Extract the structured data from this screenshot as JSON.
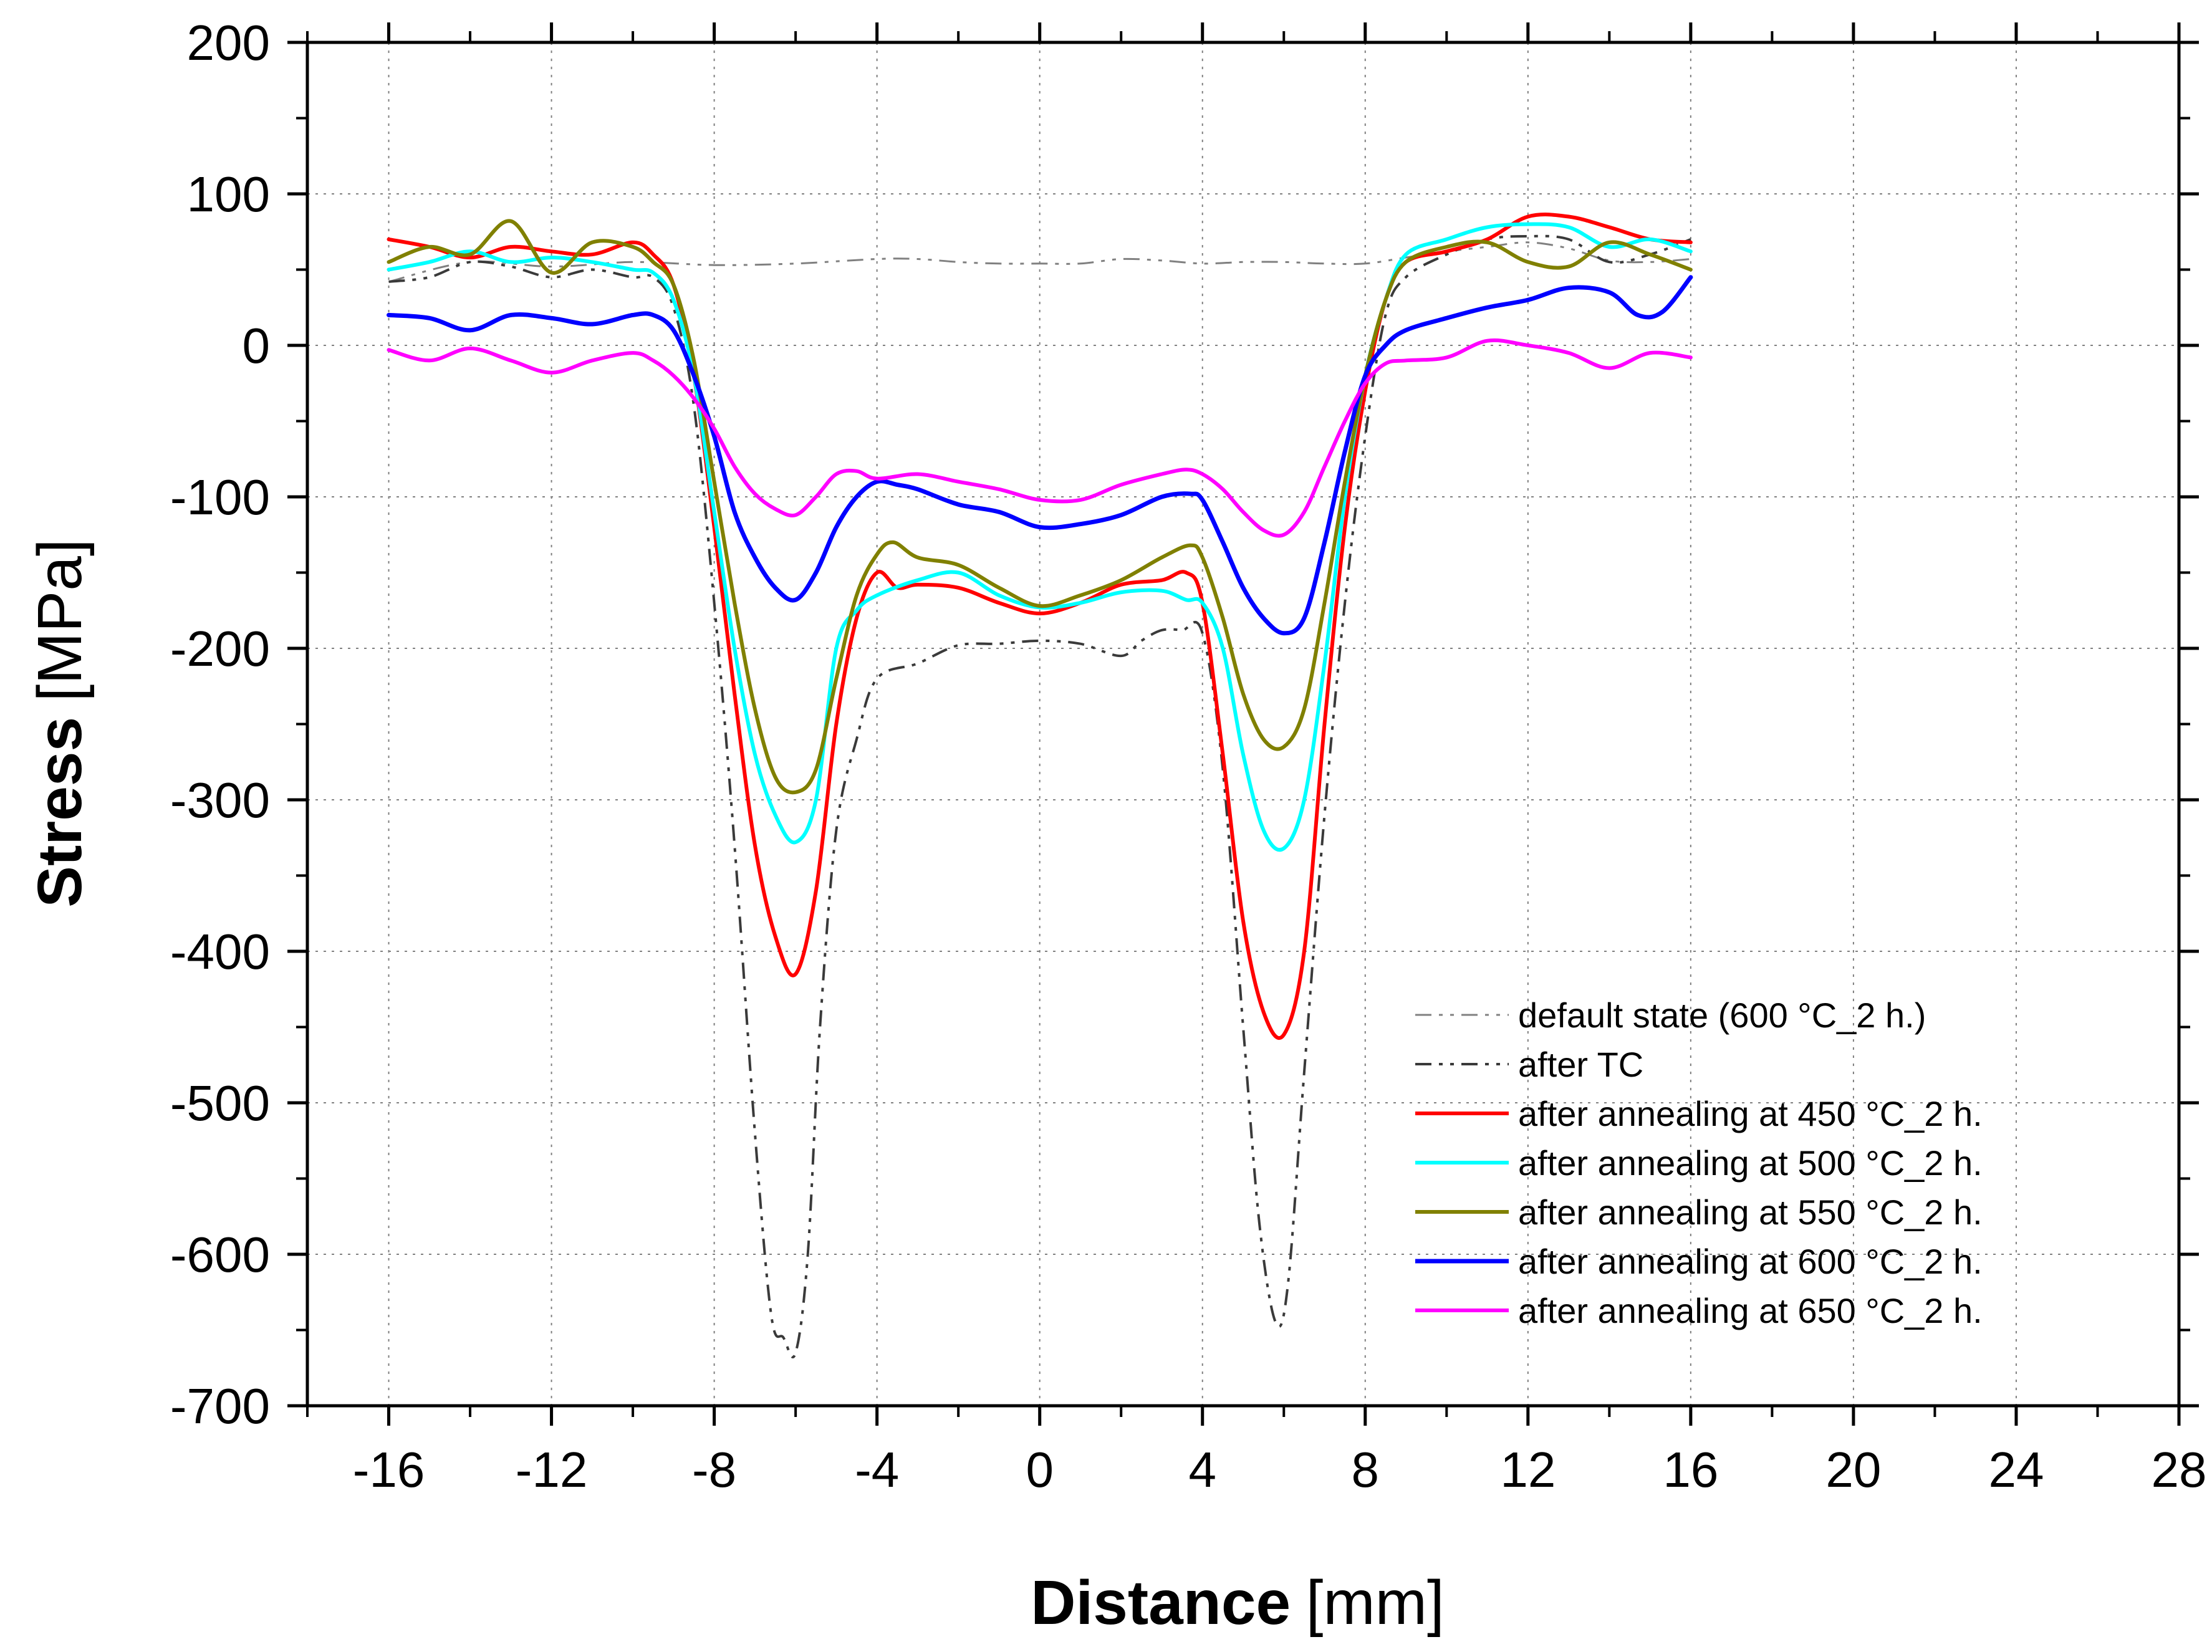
{
  "chart_data": {
    "type": "line",
    "title": "",
    "xlabel_bold": "Distance",
    "xlabel_unit": "[mm]",
    "ylabel_bold": "Stress",
    "ylabel_unit": "[MPa]",
    "xlim": [
      -18,
      28
    ],
    "ylim": [
      -700,
      200
    ],
    "xticks": [
      -16,
      -12,
      -8,
      -4,
      0,
      4,
      8,
      12,
      16,
      20,
      24,
      28
    ],
    "yticks": [
      200,
      100,
      0,
      -100,
      -200,
      -300,
      -400,
      -500,
      -600,
      -700
    ],
    "xtick_labels": [
      "-16",
      "-12",
      "-8",
      "-4",
      "0",
      "4",
      "8",
      "12",
      "16",
      "20",
      "24",
      "28"
    ],
    "ytick_labels": [
      "200",
      "100",
      "0",
      "-100",
      "-200",
      "-300",
      "-400",
      "-500",
      "-600",
      "-700"
    ],
    "grid": true,
    "legend_position": "bottom-right",
    "series": [
      {
        "name": "default state (600 °C_2 h.)",
        "color": "#808080",
        "dash": "dash-dot-dot",
        "width": 3,
        "x": [
          -16,
          -14,
          -12,
          -10,
          -8,
          -6,
          -4,
          -3,
          -2,
          -1,
          0,
          1,
          2,
          3,
          4,
          5,
          6,
          7,
          8,
          9,
          10,
          11,
          12,
          13,
          14,
          15,
          16
        ],
        "y": [
          42,
          55,
          52,
          55,
          53,
          54,
          57,
          57,
          55,
          54,
          54,
          54,
          57,
          56,
          54,
          55,
          55,
          54,
          54,
          58,
          62,
          65,
          68,
          64,
          56,
          55,
          57
        ]
      },
      {
        "name": "after TC",
        "color": "#3a3a3a",
        "dash": "dash-dot-dot",
        "width": 4,
        "x": [
          -16,
          -15,
          -14,
          -13,
          -12,
          -11,
          -10,
          -9.5,
          -9,
          -8.5,
          -8,
          -7.5,
          -7,
          -6.6,
          -6.3,
          -6,
          -5.7,
          -5.4,
          -5,
          -4.5,
          -4,
          -3,
          -2,
          -1,
          0,
          1,
          2,
          2.5,
          3,
          3.5,
          4,
          4.5,
          5,
          5.4,
          5.8,
          6.1,
          6.5,
          7,
          7.5,
          8,
          8.5,
          9,
          10,
          11,
          12,
          13,
          14,
          15,
          16
        ],
        "y": [
          42,
          45,
          55,
          52,
          45,
          50,
          45,
          45,
          25,
          -40,
          -170,
          -330,
          -520,
          -640,
          -655,
          -665,
          -600,
          -450,
          -320,
          -260,
          -220,
          -210,
          -198,
          -197,
          -195,
          -197,
          -205,
          -195,
          -188,
          -188,
          -190,
          -280,
          -450,
          -580,
          -645,
          -620,
          -480,
          -310,
          -170,
          -60,
          20,
          45,
          60,
          70,
          72,
          70,
          55,
          60,
          70
        ]
      },
      {
        "name": "after annealing at 450 °C_2 h.",
        "color": "#ff0000",
        "dash": "solid",
        "width": 6,
        "x": [
          -16,
          -15,
          -14,
          -13,
          -12,
          -11,
          -10,
          -9.5,
          -9,
          -8.5,
          -8,
          -7.5,
          -7,
          -6.5,
          -6,
          -5.5,
          -5,
          -4.5,
          -4,
          -3.5,
          -3,
          -2,
          -1,
          0,
          1,
          2,
          3,
          3.6,
          4,
          4.5,
          5,
          5.5,
          6,
          6.5,
          7,
          7.5,
          8,
          8.5,
          9,
          10,
          11,
          12,
          13,
          14,
          15,
          16
        ],
        "y": [
          70,
          65,
          58,
          65,
          62,
          60,
          68,
          60,
          40,
          -20,
          -120,
          -230,
          -330,
          -390,
          -415,
          -360,
          -250,
          -180,
          -150,
          -160,
          -158,
          -160,
          -170,
          -177,
          -170,
          -158,
          -155,
          -150,
          -170,
          -270,
          -380,
          -440,
          -455,
          -400,
          -250,
          -120,
          -30,
          30,
          55,
          62,
          70,
          85,
          85,
          78,
          70,
          68
        ]
      },
      {
        "name": "after annealing at 500 °C_2 h.",
        "color": "#00ffff",
        "dash": "solid",
        "width": 6,
        "x": [
          -16,
          -15,
          -14,
          -13,
          -12,
          -11,
          -10,
          -9.5,
          -9,
          -8.5,
          -8,
          -7.5,
          -7,
          -6.5,
          -6,
          -5.5,
          -5,
          -4.5,
          -4,
          -3,
          -2,
          -1,
          0,
          1,
          2,
          3,
          3.6,
          4,
          4.5,
          5,
          5.5,
          6,
          6.5,
          7,
          7.5,
          8,
          8.5,
          9,
          10,
          11,
          12,
          13,
          14,
          15,
          16
        ],
        "y": [
          50,
          55,
          62,
          55,
          58,
          55,
          50,
          48,
          30,
          -20,
          -110,
          -200,
          -270,
          -310,
          -328,
          -300,
          -200,
          -175,
          -165,
          -155,
          -150,
          -165,
          -173,
          -170,
          -163,
          -162,
          -168,
          -170,
          -200,
          -270,
          -320,
          -332,
          -300,
          -210,
          -100,
          -20,
          30,
          60,
          70,
          78,
          80,
          78,
          65,
          70,
          62
        ]
      },
      {
        "name": "after annealing at 550 °C_2 h.",
        "color": "#808000",
        "dash": "solid",
        "width": 6,
        "x": [
          -16,
          -15,
          -14,
          -13,
          -12,
          -11,
          -10,
          -9.5,
          -9,
          -8.5,
          -8,
          -7.5,
          -7,
          -6.5,
          -6,
          -5.5,
          -5,
          -4.5,
          -4,
          -3.6,
          -3,
          -2,
          -1,
          0,
          1,
          2,
          3,
          3.7,
          4,
          4.5,
          5,
          5.5,
          6,
          6.5,
          7,
          7.5,
          8,
          8.5,
          9,
          10,
          11,
          12,
          13,
          14,
          15,
          16
        ],
        "y": [
          55,
          65,
          60,
          82,
          48,
          68,
          65,
          55,
          40,
          -10,
          -90,
          -170,
          -240,
          -285,
          -295,
          -280,
          -220,
          -165,
          -138,
          -130,
          -140,
          -145,
          -160,
          -172,
          -165,
          -155,
          -140,
          -132,
          -140,
          -180,
          -230,
          -260,
          -265,
          -240,
          -170,
          -90,
          -20,
          30,
          55,
          65,
          68,
          55,
          52,
          68,
          60,
          50
        ]
      },
      {
        "name": "after annealing at 600 °C_2 h.",
        "color": "#0000ff",
        "dash": "solid",
        "width": 7,
        "x": [
          -16,
          -15,
          -14,
          -13,
          -12,
          -11,
          -10,
          -9.5,
          -9,
          -8.5,
          -8,
          -7.5,
          -7,
          -6.5,
          -6,
          -5.5,
          -5,
          -4.5,
          -4,
          -3.5,
          -3,
          -2,
          -1,
          0,
          1,
          2,
          3,
          3.7,
          4,
          4.5,
          5,
          5.5,
          6,
          6.5,
          7,
          7.5,
          8,
          8.5,
          9,
          10,
          11,
          12,
          13,
          14,
          14.7,
          15.3,
          16
        ],
        "y": [
          20,
          18,
          10,
          20,
          18,
          14,
          20,
          20,
          10,
          -20,
          -60,
          -110,
          -140,
          -160,
          -168,
          -150,
          -120,
          -100,
          -90,
          -92,
          -95,
          -105,
          -110,
          -120,
          -118,
          -112,
          -100,
          -98,
          -102,
          -130,
          -160,
          -180,
          -190,
          -180,
          -130,
          -70,
          -20,
          0,
          10,
          18,
          25,
          30,
          38,
          35,
          20,
          22,
          45
        ]
      },
      {
        "name": "after annealing at 650 °C_2 h.",
        "color": "#ff00ff",
        "dash": "solid",
        "width": 6,
        "x": [
          -16,
          -15,
          -14,
          -13,
          -12,
          -11,
          -10,
          -9.5,
          -9,
          -8.5,
          -8,
          -7.5,
          -7,
          -6.5,
          -6,
          -5.5,
          -5,
          -4.5,
          -4,
          -3,
          -2,
          -1,
          0,
          1,
          2,
          3,
          3.6,
          4,
          4.5,
          5,
          5.5,
          6,
          6.5,
          7,
          7.5,
          8,
          8.5,
          9,
          10,
          11,
          12,
          13,
          14,
          15,
          16
        ],
        "y": [
          -3,
          -10,
          -2,
          -10,
          -18,
          -10,
          -5,
          -10,
          -20,
          -35,
          -55,
          -80,
          -98,
          -108,
          -112,
          -100,
          -85,
          -83,
          -88,
          -85,
          -90,
          -95,
          -102,
          -102,
          -92,
          -85,
          -82,
          -85,
          -95,
          -110,
          -122,
          -125,
          -110,
          -80,
          -50,
          -25,
          -12,
          -10,
          -8,
          3,
          0,
          -5,
          -15,
          -5,
          -8
        ]
      }
    ]
  }
}
